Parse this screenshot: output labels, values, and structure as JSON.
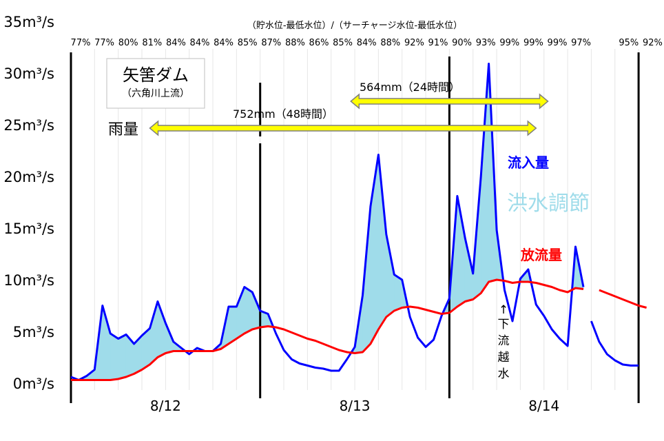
{
  "chart_data": {
    "type": "area",
    "title": "矢筈ダム",
    "subtitle": "（六角川上流）",
    "storage_note": "（貯水位-最低水位）/（サーチャージ水位-最低水位）",
    "storage_ratios": [
      "77%",
      "77%",
      "80%",
      "81%",
      "84%",
      "84%",
      "84%",
      "85%",
      "87%",
      "88%",
      "86%",
      "85%",
      "84%",
      "88%",
      "92%",
      "91%",
      "90%",
      "93%",
      "99%",
      "99%",
      "99%",
      "97%",
      "",
      "95%",
      "92%"
    ],
    "y_unit": "m³/s",
    "y_ticks": [
      "0m³/s",
      "5m³/s",
      "10m³/s",
      "15m³/s",
      "20m³/s",
      "25m³/s",
      "30m³/s",
      "35m³/s"
    ],
    "ylim": [
      0,
      35
    ],
    "x_unit_hours": true,
    "xlim": [
      0,
      74
    ],
    "day_labels": [
      {
        "label": "8/12",
        "center": 12
      },
      {
        "label": "8/13",
        "center": 36
      },
      {
        "label": "8/14",
        "center": 60
      }
    ],
    "day_boundaries": [
      0,
      24,
      48,
      72
    ],
    "rain_label": "雨量",
    "rain_events": [
      {
        "label": "564mm（24時間）",
        "start": 35.5,
        "end": 60.5
      },
      {
        "label": "752mm（48時間）",
        "start": 10,
        "end": 59
      }
    ],
    "inflow_label": "流入量",
    "flood_label": "洪水調節",
    "outflow_label": "放流量",
    "spill_label": [
      "↑",
      "下",
      "流",
      "越",
      "水"
    ],
    "colors": {
      "inflow": "#0000ff",
      "outflow": "#ff0000",
      "flood": "#9fdcea",
      "arrow_fill": "#ffff00",
      "arrow_stroke": "#7f7f7f"
    },
    "series": [
      {
        "name": "流入量",
        "segments": [
          {
            "x": [
              0,
              1,
              2,
              3,
              4,
              5,
              6,
              7,
              8,
              9,
              10,
              11,
              12,
              13,
              14,
              15,
              16,
              17,
              18,
              19,
              20,
              21,
              22,
              23,
              24,
              25,
              26,
              27,
              28,
              29,
              30,
              31,
              32,
              33,
              34,
              35,
              36,
              37,
              38,
              39,
              40,
              41,
              42,
              43,
              44,
              45,
              46,
              47,
              48,
              49,
              50,
              51,
              52,
              53,
              54,
              55,
              56,
              57,
              58,
              59,
              60,
              61,
              62,
              63,
              64,
              65
            ],
            "y": [
              0.6,
              0.3,
              0.7,
              1.3,
              7.5,
              4.8,
              4.3,
              4.7,
              3.8,
              4.6,
              5.3,
              7.9,
              5.8,
              4,
              3.4,
              2.8,
              3.4,
              3.1,
              3.1,
              3.8,
              7.4,
              7.4,
              9.3,
              8.8,
              7,
              6.7,
              4.8,
              3.2,
              2.3,
              1.9,
              1.7,
              1.5,
              1.4,
              1.2,
              1.2,
              2.3,
              3.5,
              8.5,
              17.1,
              22.1,
              14.4,
              10.5,
              10,
              6.4,
              4.4,
              3.5,
              4.2,
              6.5,
              8.2,
              18.1,
              14,
              10.6,
              20,
              30.9,
              14.8,
              9,
              6,
              10.1,
              11,
              7.6,
              6.5,
              5.2,
              4.3,
              3.6,
              13.2,
              9.3
            ]
          },
          {
            "x": [
              66,
              67,
              68,
              69,
              70,
              71,
              72
            ],
            "y": [
              6,
              4,
              2.8,
              2.2,
              1.8,
              1.7,
              1.7
            ]
          }
        ]
      },
      {
        "name": "放流量",
        "segments": [
          {
            "x": [
              0,
              1,
              2,
              3,
              4,
              5,
              6,
              7,
              8,
              9,
              10,
              11,
              12,
              13,
              14,
              15,
              16,
              17,
              18,
              19,
              20,
              21,
              22,
              23,
              24,
              25,
              26,
              27,
              28,
              29,
              30,
              31,
              32,
              33,
              34,
              35,
              36,
              37,
              38,
              39,
              40,
              41,
              42,
              43,
              44,
              45,
              46,
              47,
              48,
              49,
              50,
              51,
              52,
              53,
              54,
              55,
              56,
              57,
              58,
              59,
              60,
              61,
              62,
              63,
              64,
              65
            ],
            "y": [
              0.3,
              0.3,
              0.3,
              0.3,
              0.3,
              0.3,
              0.4,
              0.6,
              0.9,
              1.3,
              1.8,
              2.5,
              2.9,
              3.1,
              3.1,
              3.1,
              3.1,
              3.1,
              3.1,
              3.3,
              3.8,
              4.3,
              4.8,
              5.2,
              5.4,
              5.5,
              5.4,
              5.2,
              4.9,
              4.6,
              4.3,
              4.1,
              3.8,
              3.5,
              3.2,
              3.0,
              2.9,
              3.0,
              3.8,
              5.2,
              6.4,
              7.0,
              7.3,
              7.4,
              7.3,
              7.1,
              6.9,
              6.7,
              6.8,
              7.4,
              7.9,
              8.1,
              8.7,
              9.8,
              10,
              9.9,
              9.7,
              9.8,
              9.8,
              9.7,
              9.5,
              9.3,
              9.0,
              8.8,
              9.2,
              9.1
            ]
          },
          {
            "x": [
              67,
              68,
              69,
              70,
              71,
              72,
              73
            ],
            "y": [
              9,
              8.7,
              8.4,
              8.1,
              7.8,
              7.5,
              7.3
            ]
          }
        ]
      }
    ]
  }
}
